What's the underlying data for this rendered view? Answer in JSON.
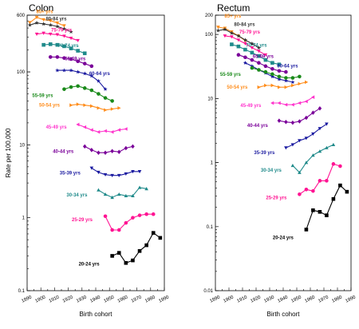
{
  "chart_data": [
    {
      "type": "line",
      "title": "Colon",
      "ylabel": "Rate per 100,000",
      "xlabel": "Birth cohort",
      "yscale": "log",
      "ylim": [
        0.1,
        600
      ],
      "xlim": [
        1890,
        1990
      ],
      "yticks": [
        "0.1",
        "1",
        "10",
        "100",
        "600"
      ],
      "xticks": [
        "1890",
        "1900",
        "1910",
        "1920",
        "1930",
        "1940",
        "1950",
        "1960",
        "1970",
        "1980",
        "1990"
      ],
      "series": [
        {
          "name": "85+ yrs",
          "color": "#ff8c1a",
          "marker": "triangle-down",
          "x": [
            1892,
            1897,
            1902,
            1907,
            1912,
            1917
          ],
          "y": [
            475,
            560,
            520,
            505,
            470,
            430
          ]
        },
        {
          "name": "80-84 yrs",
          "color": "#333333",
          "marker": "star",
          "x": [
            1892,
            1897,
            1902,
            1907,
            1912,
            1917,
            1922
          ],
          "y": [
            440,
            470,
            455,
            440,
            420,
            390,
            355
          ]
        },
        {
          "name": "75-79 yrs",
          "color": "#ff1493",
          "marker": "triangle-down",
          "x": [
            1897,
            1902,
            1907,
            1912,
            1917,
            1922,
            1927
          ],
          "y": [
            330,
            340,
            330,
            325,
            310,
            290,
            270
          ]
        },
        {
          "name": "70-74 yrs",
          "color": "#1f8a8a",
          "marker": "square",
          "x": [
            1902,
            1907,
            1912,
            1917,
            1922,
            1927,
            1932
          ],
          "y": [
            235,
            240,
            235,
            225,
            210,
            195,
            180
          ]
        },
        {
          "name": "65-69 yrs",
          "color": "#7a0099",
          "marker": "circle",
          "x": [
            1907,
            1912,
            1917,
            1922,
            1927,
            1932,
            1937
          ],
          "y": [
            160,
            160,
            155,
            150,
            140,
            130,
            120
          ]
        },
        {
          "name": "60-64 yrs",
          "color": "#1a1aa0",
          "marker": "star",
          "x": [
            1912,
            1917,
            1922,
            1927,
            1932,
            1937,
            1942,
            1947
          ],
          "y": [
            105,
            105,
            105,
            100,
            95,
            88,
            75,
            58
          ]
        },
        {
          "name": "55-59 yrs",
          "color": "#1a8a1a",
          "marker": "circle",
          "x": [
            1917,
            1922,
            1927,
            1932,
            1937,
            1942,
            1947,
            1952
          ],
          "y": [
            58,
            62,
            64,
            60,
            56,
            50,
            44,
            40
          ]
        },
        {
          "name": "50-54 yrs",
          "color": "#ff8c1a",
          "marker": "triangle-right",
          "x": [
            1922,
            1927,
            1932,
            1937,
            1942,
            1947,
            1952,
            1957
          ],
          "y": [
            35,
            36,
            35,
            34,
            32,
            30,
            31,
            32
          ]
        },
        {
          "name": "45-49 yrs",
          "color": "#ff33cc",
          "marker": "triangle-left",
          "x": [
            1927,
            1932,
            1937,
            1942,
            1947,
            1952,
            1957,
            1962
          ],
          "y": [
            19,
            17.5,
            16,
            15,
            15.5,
            15,
            16,
            16.5
          ]
        },
        {
          "name": "40-44 yrs",
          "color": "#7a0099",
          "marker": "diamond",
          "x": [
            1932,
            1937,
            1942,
            1947,
            1952,
            1957,
            1962,
            1967
          ],
          "y": [
            9.5,
            8.5,
            7.8,
            7.8,
            8.2,
            8.0,
            9.0,
            9.5
          ]
        },
        {
          "name": "35-39 yrs",
          "color": "#1a1aa0",
          "marker": "triangle-down",
          "x": [
            1937,
            1942,
            1947,
            1952,
            1957,
            1962,
            1967,
            1972
          ],
          "y": [
            4.8,
            4.2,
            3.9,
            3.8,
            3.8,
            4.0,
            4.3,
            4.3
          ]
        },
        {
          "name": "30-34 yrs",
          "color": "#1f8a8a",
          "marker": "triangle-up",
          "x": [
            1942,
            1947,
            1952,
            1957,
            1962,
            1967,
            1972,
            1977
          ],
          "y": [
            2.4,
            2.1,
            1.9,
            2.1,
            2.0,
            2.0,
            2.6,
            2.5
          ]
        },
        {
          "name": "25-29 yrs",
          "color": "#ff1493",
          "marker": "circle",
          "x": [
            1947,
            1952,
            1957,
            1962,
            1967,
            1972,
            1977,
            1982
          ],
          "y": [
            1.05,
            0.68,
            0.68,
            0.85,
            1.0,
            1.08,
            1.12,
            1.12
          ]
        },
        {
          "name": "20-24 yrs",
          "color": "#000000",
          "marker": "square",
          "x": [
            1952,
            1957,
            1962,
            1967,
            1972,
            1977,
            1982,
            1987
          ],
          "y": [
            0.3,
            0.33,
            0.24,
            0.26,
            0.35,
            0.42,
            0.62,
            0.53
          ]
        }
      ]
    },
    {
      "type": "line",
      "title": "Rectum",
      "xlabel": "Birth cohort",
      "yscale": "log",
      "ylim": [
        0.01,
        200
      ],
      "xlim": [
        1890,
        1990
      ],
      "yticks": [
        "0.01",
        "0.1",
        "1",
        "10",
        "100",
        "200"
      ],
      "xticks": [
        "1890",
        "1900",
        "1910",
        "1920",
        "1930",
        "1940",
        "1950",
        "1960",
        "1970",
        "1980",
        "1990"
      ],
      "series": [
        {
          "name": "85+ yrs",
          "color": "#ff8c1a",
          "marker": "triangle-down",
          "x": [
            1892,
            1897,
            1902,
            1907,
            1912
          ],
          "y": [
            130,
            125,
            110,
            95,
            80
          ]
        },
        {
          "name": "80-84 yrs",
          "color": "#333333",
          "marker": "star",
          "x": [
            1892,
            1897,
            1902,
            1907,
            1912,
            1917,
            1922
          ],
          "y": [
            115,
            120,
            105,
            95,
            82,
            72,
            62
          ]
        },
        {
          "name": "75-79 yrs",
          "color": "#ff1493",
          "marker": "triangle-down",
          "x": [
            1897,
            1902,
            1907,
            1912,
            1917,
            1922,
            1927
          ],
          "y": [
            95,
            92,
            82,
            72,
            62,
            55,
            48
          ]
        },
        {
          "name": "70-74 yrs",
          "color": "#1f8a8a",
          "marker": "square",
          "x": [
            1902,
            1907,
            1912,
            1917,
            1922,
            1927,
            1932,
            1937
          ],
          "y": [
            70,
            65,
            58,
            52,
            46,
            40,
            36,
            34
          ]
        },
        {
          "name": "65-69 yrs",
          "color": "#7a0099",
          "marker": "circle",
          "x": [
            1907,
            1912,
            1917,
            1922,
            1927,
            1932,
            1937,
            1942
          ],
          "y": [
            48,
            44,
            40,
            36,
            32,
            29,
            27,
            26
          ]
        },
        {
          "name": "60-64 yrs",
          "color": "#1a1aa0",
          "marker": "star",
          "x": [
            1912,
            1917,
            1922,
            1927,
            1932,
            1937,
            1942,
            1947
          ],
          "y": [
            36,
            32,
            28,
            25,
            22,
            20,
            19,
            18
          ]
        },
        {
          "name": "55-59 yrs",
          "color": "#1a8a1a",
          "marker": "circle",
          "x": [
            1917,
            1922,
            1927,
            1932,
            1937,
            1942,
            1947,
            1952
          ],
          "y": [
            30,
            28,
            26,
            24,
            22,
            21,
            21,
            22
          ]
        },
        {
          "name": "50-54 yrs",
          "color": "#ff8c1a",
          "marker": "triangle-right",
          "x": [
            1922,
            1927,
            1932,
            1937,
            1942,
            1947,
            1952,
            1957
          ],
          "y": [
            15,
            16,
            16,
            15,
            15,
            16,
            17,
            18
          ]
        },
        {
          "name": "45-49 yrs",
          "color": "#ff33cc",
          "marker": "triangle-left",
          "x": [
            1932,
            1937,
            1942,
            1947,
            1952,
            1957,
            1962
          ],
          "y": [
            8.5,
            8.5,
            8,
            8,
            8.5,
            9,
            10.5
          ]
        },
        {
          "name": "40-44 yrs",
          "color": "#7a0099",
          "marker": "diamond",
          "x": [
            1937,
            1942,
            1947,
            1952,
            1957,
            1962,
            1967
          ],
          "y": [
            4.5,
            4.3,
            4.2,
            4.4,
            5.0,
            6.0,
            7.0
          ]
        },
        {
          "name": "35-39 yrs",
          "color": "#1a1aa0",
          "marker": "triangle-down",
          "x": [
            1942,
            1947,
            1952,
            1957,
            1962,
            1967,
            1972
          ],
          "y": [
            1.7,
            1.9,
            2.2,
            2.4,
            2.8,
            3.4,
            4.0
          ]
        },
        {
          "name": "30-34 yrs",
          "color": "#1f8a8a",
          "marker": "triangle-up",
          "x": [
            1947,
            1952,
            1957,
            1962,
            1967,
            1972,
            1977
          ],
          "y": [
            0.9,
            0.7,
            1.0,
            1.3,
            1.5,
            1.7,
            1.9
          ]
        },
        {
          "name": "25-29 yrs",
          "color": "#ff1493",
          "marker": "circle",
          "x": [
            1952,
            1957,
            1962,
            1967,
            1972,
            1977,
            1982
          ],
          "y": [
            0.32,
            0.38,
            0.36,
            0.52,
            0.52,
            0.95,
            0.88
          ]
        },
        {
          "name": "20-24 yrs",
          "color": "#000000",
          "marker": "square",
          "x": [
            1957,
            1962,
            1967,
            1972,
            1977,
            1982,
            1987
          ],
          "y": [
            0.09,
            0.18,
            0.17,
            0.15,
            0.27,
            0.44,
            0.35
          ]
        }
      ]
    }
  ]
}
